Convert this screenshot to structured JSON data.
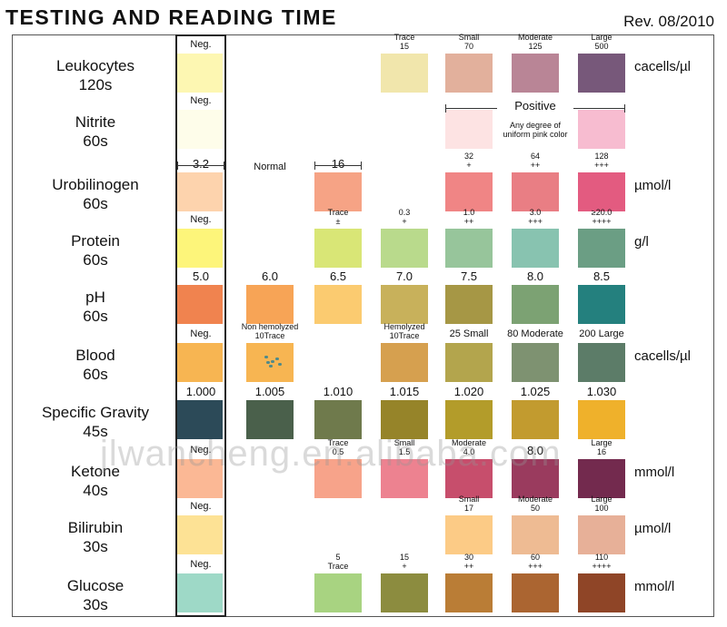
{
  "header": {
    "title": "TESTING AND READING TIME",
    "revision": "Rev. 08/2010"
  },
  "watermark": "jlwancheng.en.alibaba.com",
  "colors": {
    "frame": "#555555",
    "text": "#111111"
  },
  "tests": [
    {
      "id": "leukocytes",
      "name": "Leukocytes",
      "time": "120s",
      "unit": "cacells/µl",
      "cells": [
        {
          "col": 0,
          "label": "Neg.",
          "color": "#fdf7b2"
        },
        {
          "col": 3,
          "label": "Trace\n15",
          "color": "#f1e6ac"
        },
        {
          "col": 4,
          "label": "Small\n70",
          "color": "#e2b09c"
        },
        {
          "col": 5,
          "label": "Moderate\n125",
          "color": "#b98596"
        },
        {
          "col": 6,
          "label": "Large\n500",
          "color": "#77587a"
        }
      ]
    },
    {
      "id": "nitrite",
      "name": "Nitrite",
      "time": "60s",
      "unit": "",
      "note": {
        "title": "Positive",
        "text": "Any degree of\nuniform pink color"
      },
      "cells": [
        {
          "col": 0,
          "label": "Neg.",
          "color": "#fefdea"
        },
        {
          "col": 4,
          "label": "",
          "color": "#fde3e3"
        },
        {
          "col": 6,
          "label": "",
          "color": "#f7bcd0"
        }
      ]
    },
    {
      "id": "urobilinogen",
      "name": "Urobilinogen",
      "time": "60s",
      "unit": "µmol/l",
      "cells": [
        {
          "col": 0,
          "label": "3.2",
          "color": "#fdd3ad"
        },
        {
          "col": 1,
          "label": "Normal",
          "color": ""
        },
        {
          "col": 2,
          "label": "16",
          "color": "#f6a385"
        },
        {
          "col": 4,
          "label": "32\n+",
          "color": "#f08585"
        },
        {
          "col": 5,
          "label": "64\n++",
          "color": "#e97e84"
        },
        {
          "col": 6,
          "label": "128\n+++",
          "color": "#e35b80"
        }
      ]
    },
    {
      "id": "protein",
      "name": "Protein",
      "time": "60s",
      "unit": "g/l",
      "cells": [
        {
          "col": 0,
          "label": "Neg.",
          "color": "#fdf57a"
        },
        {
          "col": 2,
          "label": "Trace\n±",
          "color": "#d9e676"
        },
        {
          "col": 3,
          "label": "0.3\n+",
          "color": "#b9da8c"
        },
        {
          "col": 4,
          "label": "1.0\n++",
          "color": "#97c59b"
        },
        {
          "col": 5,
          "label": "3.0\n+++",
          "color": "#88c3b0"
        },
        {
          "col": 6,
          "label": "≥20.0\n++++",
          "color": "#6b9e84"
        }
      ]
    },
    {
      "id": "ph",
      "name": "pH",
      "time": "60s",
      "unit": "",
      "cells": [
        {
          "col": 0,
          "label": "5.0",
          "color": "#f0834f"
        },
        {
          "col": 1,
          "label": "6.0",
          "color": "#f7a456"
        },
        {
          "col": 2,
          "label": "6.5",
          "color": "#fbcb70"
        },
        {
          "col": 3,
          "label": "7.0",
          "color": "#c8b15b"
        },
        {
          "col": 4,
          "label": "7.5",
          "color": "#a69745"
        },
        {
          "col": 5,
          "label": "8.0",
          "color": "#7ca273"
        },
        {
          "col": 6,
          "label": "8.5",
          "color": "#24807e"
        }
      ]
    },
    {
      "id": "blood",
      "name": "Blood",
      "time": "60s",
      "unit": "cacells/µl",
      "cells": [
        {
          "col": 0,
          "label": "Neg.",
          "color": "#f7b552"
        },
        {
          "col": 1,
          "label": "Non hemolyzed\n10Trace",
          "color": "#f7b552"
        },
        {
          "col": 3,
          "label": "Hemolyzed\n10Trace",
          "color": "#d6a04f"
        },
        {
          "col": 4,
          "label": "25 Small",
          "color": "#b3a54d"
        },
        {
          "col": 5,
          "label": "80 Moderate",
          "color": "#7e9271"
        },
        {
          "col": 6,
          "label": "200 Large",
          "color": "#5c7c68"
        }
      ]
    },
    {
      "id": "specific-gravity",
      "name": "Specific Gravity",
      "time": "45s",
      "unit": "",
      "cells": [
        {
          "col": 0,
          "label": "1.000",
          "color": "#2c4a58"
        },
        {
          "col": 1,
          "label": "1.005",
          "color": "#4a604b"
        },
        {
          "col": 2,
          "label": "1.010",
          "color": "#6f7a4c"
        },
        {
          "col": 3,
          "label": "1.015",
          "color": "#968429"
        },
        {
          "col": 4,
          "label": "1.020",
          "color": "#b39c2a"
        },
        {
          "col": 5,
          "label": "1.025",
          "color": "#c29b2f"
        },
        {
          "col": 6,
          "label": "1.030",
          "color": "#efb12b"
        }
      ]
    },
    {
      "id": "ketone",
      "name": "Ketone",
      "time": "40s",
      "unit": "mmol/l",
      "cells": [
        {
          "col": 0,
          "label": "Neg.",
          "color": "#fbb895"
        },
        {
          "col": 2,
          "label": "Trace\n0.5",
          "color": "#f7a38a"
        },
        {
          "col": 3,
          "label": "Small\n1.5",
          "color": "#ed8290"
        },
        {
          "col": 4,
          "label": "Moderate\n4.0",
          "color": "#c74e6c"
        },
        {
          "col": 5,
          "label": "8.0",
          "color": "#9a3b5e"
        },
        {
          "col": 6,
          "label": "Large\n16",
          "color": "#732a4e"
        }
      ]
    },
    {
      "id": "bilirubin",
      "name": "Bilirubin",
      "time": "30s",
      "unit": "µmol/l",
      "cells": [
        {
          "col": 0,
          "label": "Neg.",
          "color": "#fde295"
        },
        {
          "col": 4,
          "label": "Small\n17",
          "color": "#fccb86"
        },
        {
          "col": 5,
          "label": "Moderate\n50",
          "color": "#eebb93"
        },
        {
          "col": 6,
          "label": "Large\n100",
          "color": "#e7b098"
        }
      ]
    },
    {
      "id": "glucose",
      "name": "Glucose",
      "time": "30s",
      "unit": "mmol/l",
      "cells": [
        {
          "col": 0,
          "label": "Neg.",
          "color": "#9ed9c7"
        },
        {
          "col": 2,
          "label": "5\nTrace",
          "color": "#a8d381"
        },
        {
          "col": 3,
          "label": "15\n+",
          "color": "#8c8c3f"
        },
        {
          "col": 4,
          "label": "30\n++",
          "color": "#ba7d36"
        },
        {
          "col": 5,
          "label": "60\n+++",
          "color": "#ab6531"
        },
        {
          "col": 6,
          "label": "110\n++++",
          "color": "#8f4527"
        }
      ]
    }
  ]
}
